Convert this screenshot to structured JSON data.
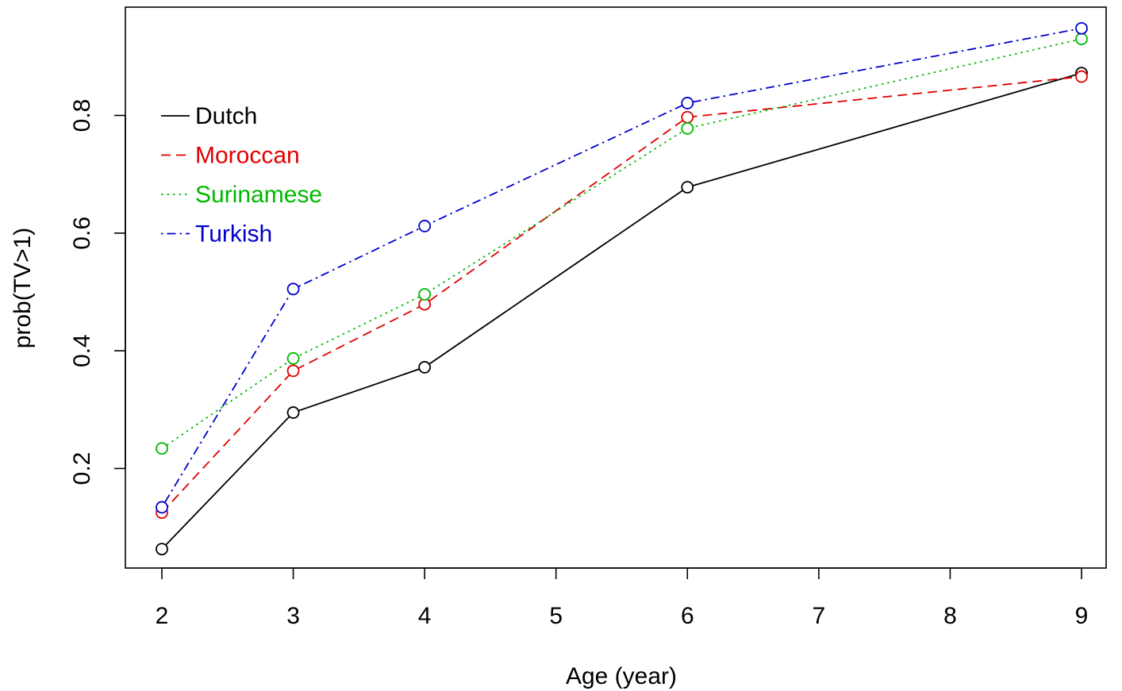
{
  "chart_data": {
    "type": "line",
    "title": "",
    "xlabel": "Age (year)",
    "ylabel": "prob(TV>1)",
    "x": [
      2,
      3,
      4,
      6,
      9
    ],
    "xticks": [
      "2",
      "3",
      "4",
      "5",
      "6",
      "7",
      "8",
      "9"
    ],
    "yticks": [
      "0.2",
      "0.4",
      "0.6",
      "0.8"
    ],
    "xlim": [
      2,
      9
    ],
    "ylim": [
      0.2,
      0.8
    ],
    "grid": false,
    "legend_position": "top-left",
    "series": [
      {
        "name": "Dutch",
        "color": "#000000",
        "dash": "solid",
        "values": [
          0.063,
          0.295,
          0.372,
          0.678,
          0.872
        ]
      },
      {
        "name": "Moroccan",
        "color": "#df0000",
        "dash": "dashed",
        "values": [
          0.125,
          0.366,
          0.479,
          0.797,
          0.866
        ]
      },
      {
        "name": "Surinamese",
        "color": "#00b800",
        "dash": "dotted",
        "values": [
          0.234,
          0.387,
          0.496,
          0.778,
          0.93
        ]
      },
      {
        "name": "Turkish",
        "color": "#0000cc",
        "dash": "dotdash",
        "values": [
          0.134,
          0.505,
          0.612,
          0.821,
          0.948
        ]
      }
    ]
  }
}
